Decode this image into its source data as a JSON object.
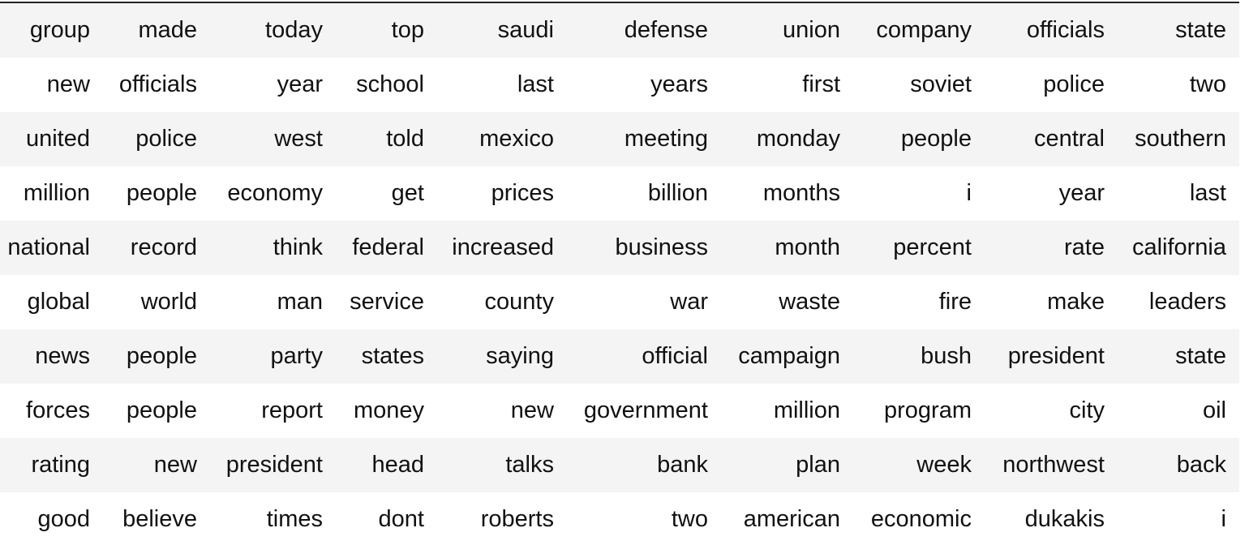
{
  "table": {
    "rows": [
      [
        "group",
        "made",
        "today",
        "top",
        "saudi",
        "defense",
        "union",
        "company",
        "officials",
        "state"
      ],
      [
        "new",
        "officials",
        "year",
        "school",
        "last",
        "years",
        "first",
        "soviet",
        "police",
        "two"
      ],
      [
        "united",
        "police",
        "west",
        "told",
        "mexico",
        "meeting",
        "monday",
        "people",
        "central",
        "southern"
      ],
      [
        "million",
        "people",
        "economy",
        "get",
        "prices",
        "billion",
        "months",
        "i",
        "year",
        "last"
      ],
      [
        "national",
        "record",
        "think",
        "federal",
        "increased",
        "business",
        "month",
        "percent",
        "rate",
        "california"
      ],
      [
        "global",
        "world",
        "man",
        "service",
        "county",
        "war",
        "waste",
        "fire",
        "make",
        "leaders"
      ],
      [
        "news",
        "people",
        "party",
        "states",
        "saying",
        "official",
        "campaign",
        "bush",
        "president",
        "state"
      ],
      [
        "forces",
        "people",
        "report",
        "money",
        "new",
        "government",
        "million",
        "program",
        "city",
        "oil"
      ],
      [
        "rating",
        "new",
        "president",
        "head",
        "talks",
        "bank",
        "plan",
        "week",
        "northwest",
        "back"
      ],
      [
        "good",
        "believe",
        "times",
        "dont",
        "roberts",
        "two",
        "american",
        "economic",
        "dukakis",
        "i"
      ]
    ]
  },
  "colors": {
    "stripe": "#f4f4f4",
    "background": "#ffffff",
    "text": "#111111",
    "rule": "#222222"
  }
}
